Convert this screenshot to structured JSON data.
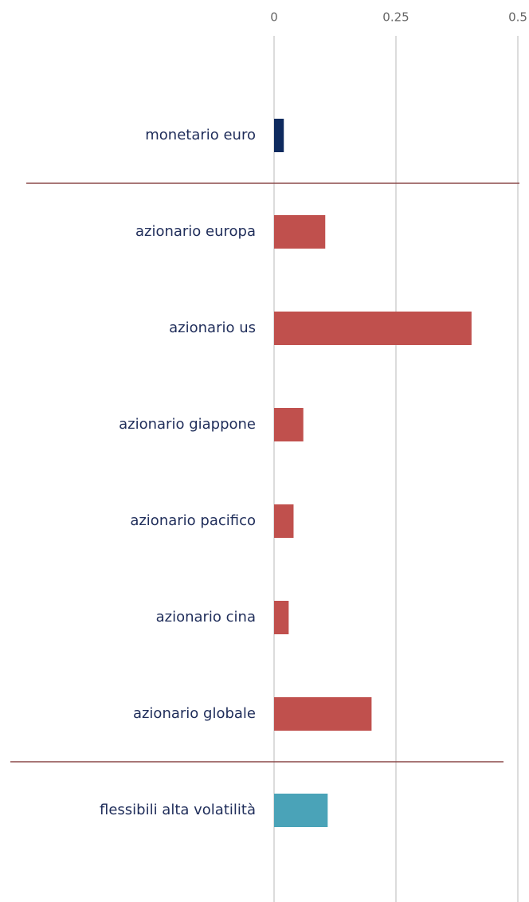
{
  "chart_data": {
    "type": "bar",
    "orientation": "horizontal",
    "categories": [
      "monetario euro",
      "azionario europa",
      "azionario us",
      "azionario giappone",
      "azionario pacifico",
      "azionario cina",
      "azionario globale",
      "flessibili alta volatilità"
    ],
    "values": [
      0.02,
      0.105,
      0.405,
      0.06,
      0.04,
      0.03,
      0.2,
      0.11
    ],
    "colors": [
      "#0e2a5e",
      "#c0504d",
      "#c0504d",
      "#c0504d",
      "#c0504d",
      "#c0504d",
      "#c0504d",
      "#4aa3b8"
    ],
    "xlim": [
      0,
      0.5
    ],
    "xticks": [
      0,
      0.25,
      0.5
    ],
    "grid": true
  }
}
